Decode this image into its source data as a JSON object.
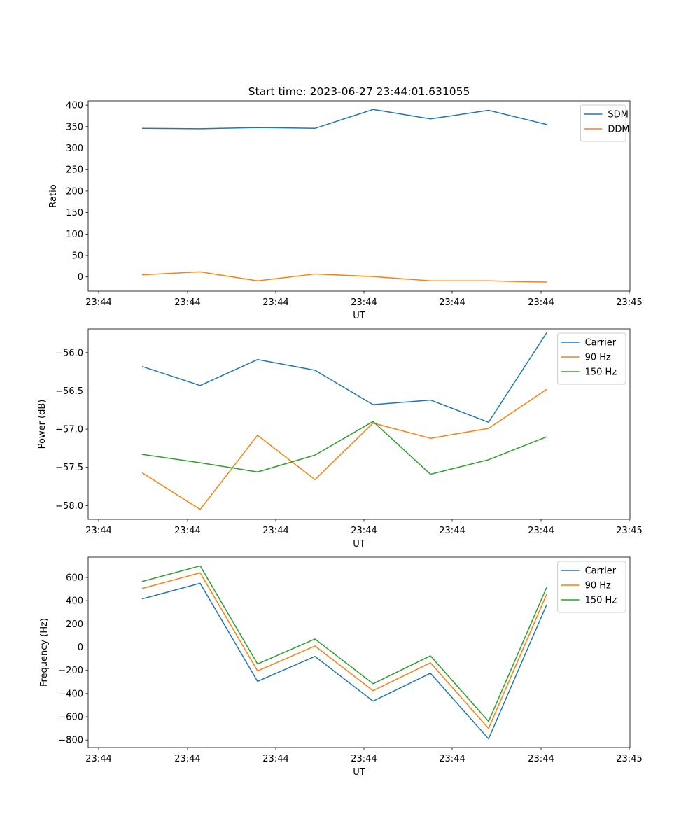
{
  "figure": {
    "title": "Start time: 2023-06-27 23:44:01.631055"
  },
  "colors": {
    "blue": "#1f77b4",
    "orange": "#ff7f0e",
    "green": "#2ca02c"
  },
  "chart_data": [
    {
      "type": "line",
      "title": "Start time: 2023-06-27 23:44:01.631055",
      "xlabel": "UT",
      "ylabel": "Ratio",
      "x_tick_labels": [
        "23:44",
        "23:44",
        "23:44",
        "23:44",
        "23:44",
        "23:44",
        "23:45"
      ],
      "x_samples": 8,
      "yticks": [
        0,
        50,
        100,
        150,
        200,
        250,
        300,
        350,
        400
      ],
      "ylim": [
        -33,
        410
      ],
      "grid": false,
      "legend": "top-right",
      "series": [
        {
          "name": "SDM",
          "color": "#1f77b4",
          "values": [
            346,
            345,
            348,
            346,
            390,
            368,
            388,
            355
          ]
        },
        {
          "name": "DDM",
          "color": "#ff7f0e",
          "values": [
            5,
            12,
            -9,
            7,
            1,
            -9,
            -9,
            -12
          ]
        }
      ]
    },
    {
      "type": "line",
      "xlabel": "UT",
      "ylabel": "Power (dB)",
      "x_tick_labels": [
        "23:44",
        "23:44",
        "23:44",
        "23:44",
        "23:44",
        "23:44",
        "23:45"
      ],
      "x_samples": 8,
      "yticks": [
        -58.0,
        -57.5,
        -57.0,
        -56.5,
        -56.0
      ],
      "ytick_labels": [
        "−58.0",
        "−57.5",
        "−57.0",
        "−56.5",
        "−56.0"
      ],
      "ylim": [
        -58.18,
        -55.69
      ],
      "grid": false,
      "legend": "top-right",
      "series": [
        {
          "name": "Carrier",
          "color": "#1f77b4",
          "values": [
            -56.18,
            -56.43,
            -56.09,
            -56.23,
            -56.68,
            -56.62,
            -56.91,
            -55.74
          ]
        },
        {
          "name": "90 Hz",
          "color": "#ff7f0e",
          "values": [
            -57.57,
            -58.05,
            -57.08,
            -57.66,
            -56.92,
            -57.12,
            -56.99,
            -56.48
          ]
        },
        {
          "name": "150 Hz",
          "color": "#2ca02c",
          "values": [
            -57.33,
            -57.44,
            -57.56,
            -57.34,
            -56.9,
            -57.59,
            -57.4,
            -57.1
          ]
        }
      ]
    },
    {
      "type": "line",
      "xlabel": "UT",
      "ylabel": "Frequency (Hz)",
      "x_tick_labels": [
        "23:44",
        "23:44",
        "23:44",
        "23:44",
        "23:44",
        "23:44",
        "23:45"
      ],
      "x_samples": 8,
      "yticks": [
        -800,
        -600,
        -400,
        -200,
        0,
        200,
        400,
        600
      ],
      "ytick_labels": [
        "−800",
        "−600",
        "−400",
        "−200",
        "0",
        "200",
        "400",
        "600"
      ],
      "ylim": [
        -865,
        775
      ],
      "grid": false,
      "legend": "top-right",
      "series": [
        {
          "name": "Carrier",
          "color": "#1f77b4",
          "values": [
            415,
            550,
            -295,
            -80,
            -465,
            -225,
            -790,
            365
          ]
        },
        {
          "name": "90 Hz",
          "color": "#ff7f0e",
          "values": [
            505,
            640,
            -205,
            10,
            -375,
            -135,
            -700,
            455
          ]
        },
        {
          "name": "150 Hz",
          "color": "#2ca02c",
          "values": [
            565,
            700,
            -145,
            70,
            -315,
            -75,
            -640,
            515
          ]
        }
      ]
    }
  ]
}
